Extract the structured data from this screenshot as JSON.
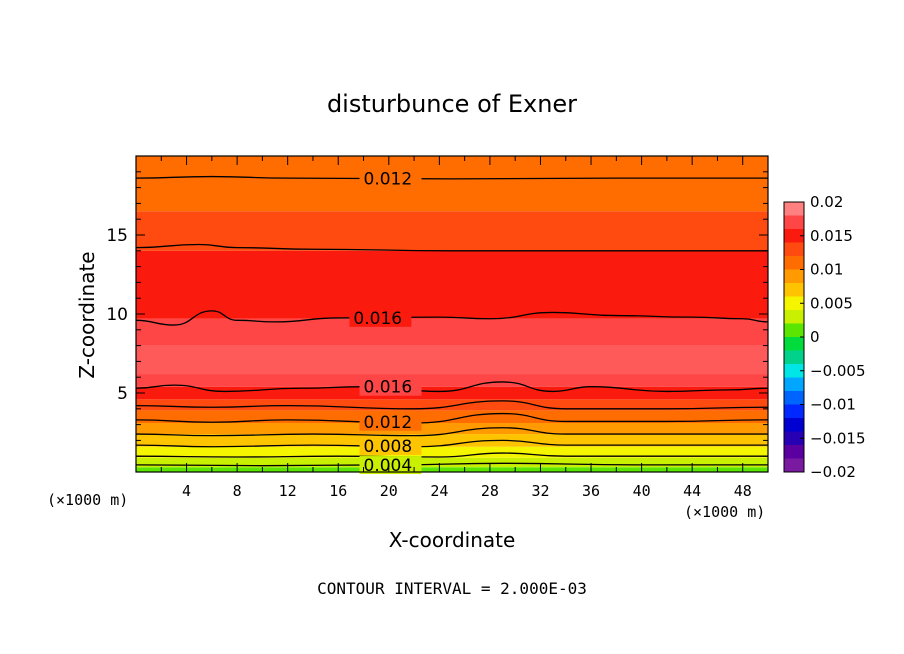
{
  "chart_data": {
    "type": "heatmap",
    "title": "disturbunce of Exner",
    "xlabel": "X-coordinate",
    "ylabel": "Z-coordinate",
    "x_unit_left": "(×1000 m)",
    "x_unit_right": "(×1000 m)",
    "xlim": [
      0,
      50
    ],
    "ylim": [
      0,
      20
    ],
    "x_ticks": [
      4,
      8,
      12,
      16,
      20,
      24,
      28,
      32,
      36,
      40,
      44,
      48
    ],
    "y_ticks": [
      5,
      10,
      15
    ],
    "footer": "CONTOUR INTERVAL = 2.000E-03",
    "colorbar": {
      "ticks": [
        "0.02",
        "0.015",
        "0.01",
        "0.005",
        "0",
        "−0.005",
        "−0.01",
        "−0.015",
        "−0.02"
      ],
      "levels": [
        {
          "from": 0.018,
          "to": 0.02,
          "color": "#ff8080"
        },
        {
          "from": 0.016,
          "to": 0.018,
          "color": "#ff4646"
        },
        {
          "from": 0.014,
          "to": 0.016,
          "color": "#fb1a0e"
        },
        {
          "from": 0.012,
          "to": 0.014,
          "color": "#ff4a10"
        },
        {
          "from": 0.01,
          "to": 0.012,
          "color": "#ff6d00"
        },
        {
          "from": 0.008,
          "to": 0.01,
          "color": "#ff9a00"
        },
        {
          "from": 0.006,
          "to": 0.008,
          "color": "#ffc400"
        },
        {
          "from": 0.004,
          "to": 0.006,
          "color": "#f5f500"
        },
        {
          "from": 0.002,
          "to": 0.004,
          "color": "#c8f000"
        },
        {
          "from": 0.0,
          "to": 0.002,
          "color": "#5ae600"
        },
        {
          "from": -0.002,
          "to": 0.0,
          "color": "#00dc3c"
        },
        {
          "from": -0.004,
          "to": -0.002,
          "color": "#00d28c"
        },
        {
          "from": -0.006,
          "to": -0.004,
          "color": "#00e6e6"
        },
        {
          "from": -0.008,
          "to": -0.006,
          "color": "#00a6ff"
        },
        {
          "from": -0.01,
          "to": -0.008,
          "color": "#0064ff"
        },
        {
          "from": -0.012,
          "to": -0.01,
          "color": "#0028ff"
        },
        {
          "from": -0.014,
          "to": -0.012,
          "color": "#0000d2"
        },
        {
          "from": -0.016,
          "to": -0.014,
          "color": "#2800b4"
        },
        {
          "from": -0.018,
          "to": -0.016,
          "color": "#5a00a0"
        },
        {
          "from": -0.02,
          "to": -0.018,
          "color": "#7a1aa0"
        }
      ]
    },
    "field_bands": [
      {
        "z_from": 0.0,
        "z_to": 0.3,
        "color": "#5ae600"
      },
      {
        "z_from": 0.3,
        "z_to": 0.9,
        "color": "#c8f000"
      },
      {
        "z_from": 0.9,
        "z_to": 1.6,
        "color": "#f5f500"
      },
      {
        "z_from": 1.6,
        "z_to": 2.4,
        "color": "#ffc400"
      },
      {
        "z_from": 2.4,
        "z_to": 3.1,
        "color": "#ff9a00"
      },
      {
        "z_from": 3.1,
        "z_to": 3.9,
        "color": "#ff6d00"
      },
      {
        "z_from": 3.9,
        "z_to": 4.6,
        "color": "#ff4a10"
      },
      {
        "z_from": 4.6,
        "z_to": 5.4,
        "color": "#fb1a0e"
      },
      {
        "z_from": 5.4,
        "z_to": 6.2,
        "color": "#ff4646"
      },
      {
        "z_from": 6.2,
        "z_to": 8.0,
        "color": "#ff5a5a"
      },
      {
        "z_from": 8.0,
        "z_to": 9.7,
        "color": "#ff4646"
      },
      {
        "z_from": 9.7,
        "z_to": 14.0,
        "color": "#fb1a0e"
      },
      {
        "z_from": 14.0,
        "z_to": 16.5,
        "color": "#ff4a10"
      },
      {
        "z_from": 16.5,
        "z_to": 20.0,
        "color": "#ff6d00"
      }
    ],
    "contours": [
      {
        "label": "0.012",
        "label_x": 18,
        "points": [
          [
            0,
            18.6
          ],
          [
            6,
            18.7
          ],
          [
            12,
            18.6
          ],
          [
            25,
            18.55
          ],
          [
            38,
            18.6
          ],
          [
            50,
            18.6
          ]
        ]
      },
      {
        "label": "",
        "points": [
          [
            0,
            14.2
          ],
          [
            5,
            14.4
          ],
          [
            8,
            14.2
          ],
          [
            14,
            14.1
          ],
          [
            25,
            14.0
          ],
          [
            38,
            14.0
          ],
          [
            50,
            14.0
          ]
        ]
      },
      {
        "label": "0.016",
        "label_x": 17.2,
        "points": [
          [
            0,
            9.6
          ],
          [
            3,
            9.3
          ],
          [
            6,
            10.2
          ],
          [
            8,
            9.6
          ],
          [
            11,
            9.5
          ],
          [
            16,
            9.75
          ],
          [
            24,
            9.8
          ],
          [
            28,
            9.7
          ],
          [
            33,
            10.1
          ],
          [
            38,
            9.9
          ],
          [
            44,
            9.8
          ],
          [
            48,
            9.7
          ],
          [
            50,
            9.5
          ]
        ]
      },
      {
        "label": "0.016",
        "label_x": 18,
        "points": [
          [
            0,
            5.3
          ],
          [
            3,
            5.5
          ],
          [
            7,
            5.1
          ],
          [
            13,
            5.3
          ],
          [
            18,
            5.4
          ],
          [
            24,
            5.1
          ],
          [
            29,
            5.7
          ],
          [
            33,
            5.1
          ],
          [
            36,
            5.4
          ],
          [
            42,
            5.1
          ],
          [
            47,
            5.2
          ],
          [
            50,
            5.3
          ]
        ]
      },
      {
        "label": "",
        "points": [
          [
            0,
            4.2
          ],
          [
            6,
            4.1
          ],
          [
            12,
            4.2
          ],
          [
            22,
            4.0
          ],
          [
            29,
            4.5
          ],
          [
            34,
            4.0
          ],
          [
            42,
            4.0
          ],
          [
            50,
            4.1
          ]
        ]
      },
      {
        "label": "0.012",
        "label_x": 18,
        "points": [
          [
            0,
            3.3
          ],
          [
            6,
            3.15
          ],
          [
            12,
            3.3
          ],
          [
            22,
            3.1
          ],
          [
            29,
            3.7
          ],
          [
            34,
            3.2
          ],
          [
            42,
            3.2
          ],
          [
            50,
            3.3
          ]
        ]
      },
      {
        "label": "",
        "points": [
          [
            0,
            2.4
          ],
          [
            6,
            2.3
          ],
          [
            14,
            2.4
          ],
          [
            22,
            2.3
          ],
          [
            29,
            2.8
          ],
          [
            34,
            2.4
          ],
          [
            42,
            2.4
          ],
          [
            50,
            2.4
          ]
        ]
      },
      {
        "label": "0.008",
        "label_x": 18,
        "points": [
          [
            0,
            1.7
          ],
          [
            6,
            1.6
          ],
          [
            14,
            1.7
          ],
          [
            22,
            1.6
          ],
          [
            29,
            2.0
          ],
          [
            34,
            1.7
          ],
          [
            42,
            1.7
          ],
          [
            50,
            1.7
          ]
        ]
      },
      {
        "label": "",
        "points": [
          [
            0,
            1.0
          ],
          [
            8,
            0.95
          ],
          [
            16,
            1.0
          ],
          [
            24,
            0.95
          ],
          [
            29,
            1.2
          ],
          [
            34,
            1.0
          ],
          [
            42,
            1.0
          ],
          [
            50,
            1.0
          ]
        ]
      },
      {
        "label": "0.004",
        "label_x": 18,
        "points": [
          [
            0,
            0.45
          ],
          [
            10,
            0.4
          ],
          [
            20,
            0.45
          ],
          [
            29,
            0.55
          ],
          [
            40,
            0.45
          ],
          [
            50,
            0.45
          ]
        ]
      }
    ]
  }
}
